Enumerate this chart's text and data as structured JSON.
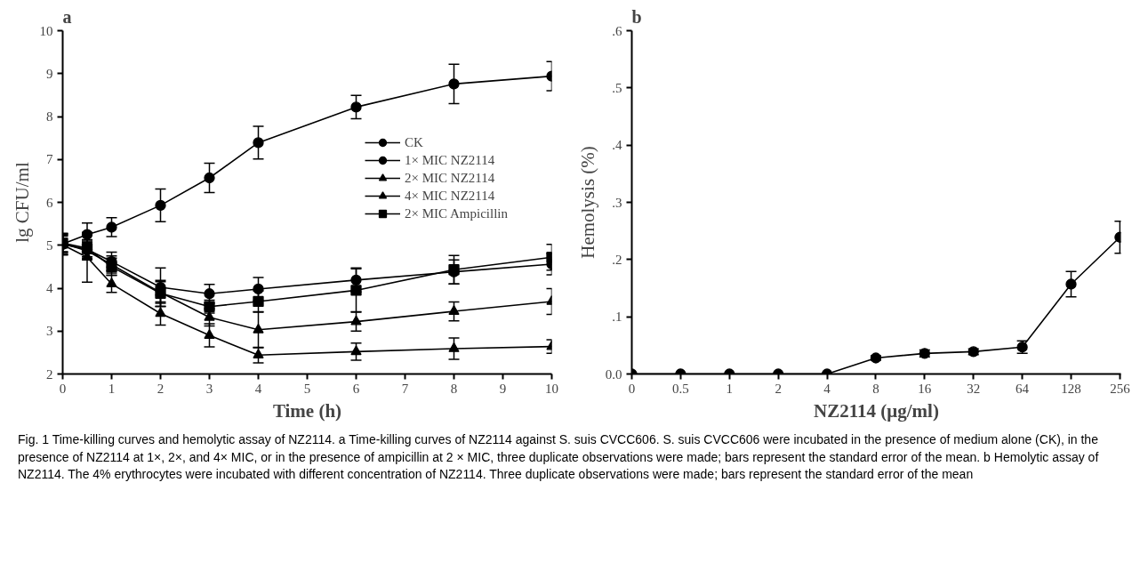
{
  "chart_data": [
    {
      "type": "line",
      "title": "a",
      "xlabel": "Time (h)",
      "ylabel": "lg CFU/ml",
      "x": [
        0,
        0.5,
        1,
        2,
        3,
        4,
        6,
        8,
        10
      ],
      "xlim": [
        0,
        10
      ],
      "xticks": [
        0,
        1,
        2,
        3,
        4,
        5,
        6,
        7,
        8,
        9,
        10
      ],
      "ylim": [
        2,
        10
      ],
      "yticks": [
        2,
        3,
        4,
        5,
        6,
        7,
        8,
        9,
        10
      ],
      "grid": false,
      "legend": "right",
      "line_style": "solid",
      "series": [
        {
          "name": "CK",
          "color": "#000000",
          "marker": "circle",
          "values": [
            5.03,
            5.25,
            5.42,
            5.93,
            6.57,
            7.39,
            8.22,
            8.76,
            8.94
          ],
          "errors": [
            0.25,
            0.27,
            0.22,
            0.38,
            0.34,
            0.38,
            0.27,
            0.46,
            0.34
          ]
        },
        {
          "name": "1× MIC NZ2114",
          "color": "#000000",
          "marker": "circle",
          "values": [
            5.02,
            4.9,
            4.62,
            4.02,
            3.87,
            3.98,
            4.19,
            4.38,
            4.56
          ],
          "errors": [
            0.25,
            0.2,
            0.22,
            0.45,
            0.22,
            0.27,
            0.28,
            0.28,
            0.25
          ]
        },
        {
          "name": "2× MIC NZ2114",
          "color": "#000000",
          "marker": "triangle",
          "values": [
            5.04,
            4.87,
            4.55,
            3.9,
            3.32,
            3.03,
            3.22,
            3.46,
            3.69
          ],
          "errors": [
            0.2,
            0.2,
            0.2,
            0.25,
            0.2,
            0.42,
            0.22,
            0.22,
            0.3
          ]
        },
        {
          "name": "4× MIC NZ2114",
          "color": "#000000",
          "marker": "triangle",
          "values": [
            5.01,
            4.72,
            4.1,
            3.41,
            2.9,
            2.44,
            2.52,
            2.59,
            2.64
          ],
          "errors": [
            0.2,
            0.58,
            0.2,
            0.27,
            0.27,
            0.18,
            0.2,
            0.25,
            0.16
          ]
        },
        {
          "name": "2× MIC Ampicillin",
          "color": "#000000",
          "marker": "square",
          "values": [
            5.05,
            4.93,
            4.5,
            3.88,
            3.57,
            3.69,
            3.95,
            4.43,
            4.72
          ],
          "errors": [
            0.2,
            0.2,
            0.2,
            0.3,
            0.15,
            0.25,
            0.5,
            0.33,
            0.3
          ]
        }
      ],
      "annotations": [
        "Fig. 1  Time-killing curves and hemolytic assay of NZ2114. a Time-killing curves of NZ2114 against S. suis CVCC606. S. suis CVCC606 were incubated in the presence of medium alone (CK), in the presence of NZ2114 at 1×, 2×, and 4× MIC, or in the presence of ampicillin at 2 × MIC, three duplicate observations were made; bars represent the standard error of the mean. b Hemolytic assay of NZ2114. The 4% erythrocytes were incubated with different concentration of NZ2114. Three duplicate observations were made; bars represent the standard error of the mean"
      ]
    },
    {
      "type": "line",
      "title": "b",
      "xlabel": "NZ2114 (μg/ml)",
      "ylabel": "Hemolysis (%)",
      "categories": [
        "0",
        "0.5",
        "1",
        "2",
        "4",
        "8",
        "16",
        "32",
        "64",
        "128",
        "256"
      ],
      "ylim": [
        0,
        0.6
      ],
      "yticks": [
        {
          "value": 0,
          "label": "0.0"
        },
        {
          "value": 0.1,
          "label": ".1"
        },
        {
          "value": 0.2,
          "label": ".2"
        },
        {
          "value": 0.3,
          "label": ".3"
        },
        {
          "value": 0.4,
          "label": ".4"
        },
        {
          "value": 0.5,
          "label": ".5"
        },
        {
          "value": 0.6,
          "label": ".6"
        }
      ],
      "grid": false,
      "marker": "circle",
      "line_style": "solid",
      "series": [
        {
          "color": "#000000",
          "values": [
            0,
            0,
            0,
            0,
            0,
            0.028,
            0.036,
            0.039,
            0.047,
            0.157,
            0.239
          ],
          "errors": [
            null,
            null,
            null,
            null,
            null,
            0.004,
            0.006,
            0.005,
            0.011,
            0.022,
            0.028
          ]
        }
      ]
    }
  ]
}
